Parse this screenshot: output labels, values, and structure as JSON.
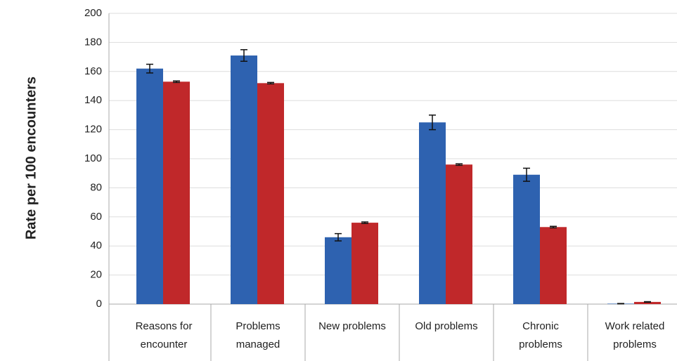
{
  "chart_data": {
    "type": "bar",
    "y_label": "Rate per 100 encounters",
    "categories": [
      "Reasons for encounter",
      "Problems managed",
      "New problems",
      "Old problems",
      "Chronic problems",
      "Work related problems"
    ],
    "series": [
      {
        "color": "#2e62b0",
        "values": [
          162,
          171,
          46,
          125,
          89,
          0.3
        ],
        "errors": [
          3,
          4,
          2.5,
          5,
          4.5,
          0.1
        ]
      },
      {
        "color": "#c0282a",
        "values": [
          153,
          152,
          56,
          96,
          53,
          1.5
        ],
        "errors": [
          0.5,
          0.5,
          0.5,
          0.5,
          0.5,
          0.2
        ]
      }
    ],
    "ylim": [
      0,
      200
    ],
    "yticks": [
      0,
      20,
      40,
      60,
      80,
      100,
      120,
      140,
      160,
      180,
      200
    ],
    "grid": true
  }
}
